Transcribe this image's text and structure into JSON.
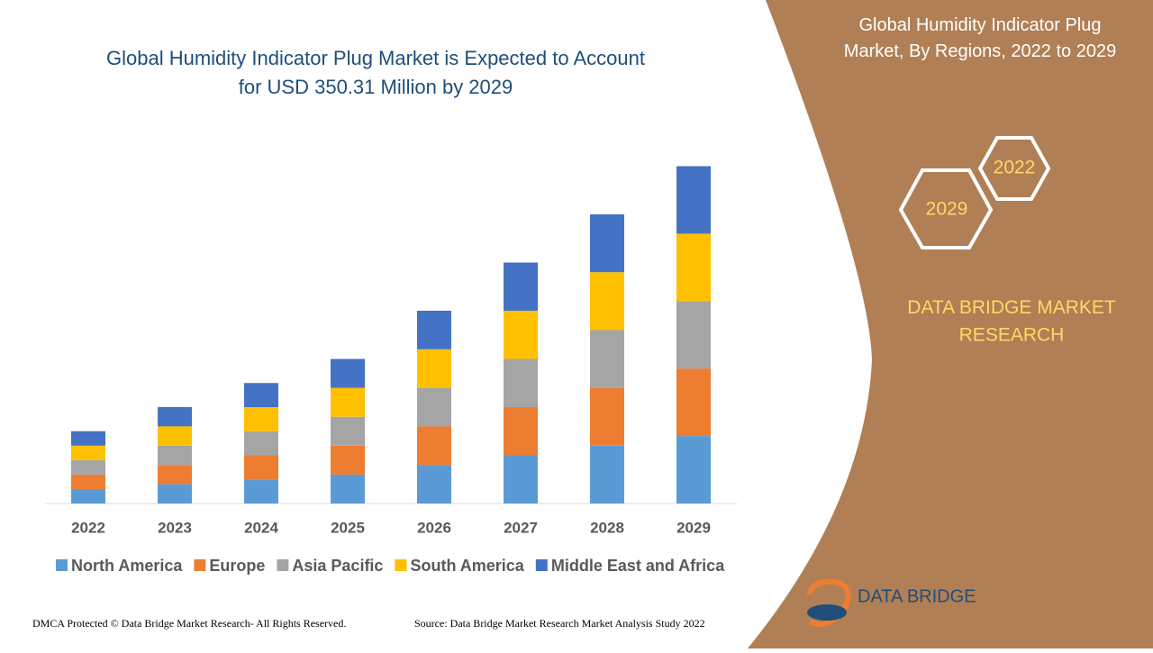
{
  "chart_data": {
    "type": "stacked_bar",
    "title": "Global Humidity Indicator Plug Market is Expected to Account for USD 350.31 Million by 2029",
    "categories": [
      "2022",
      "2023",
      "2024",
      "2025",
      "2026",
      "2027",
      "2028",
      "2029"
    ],
    "series": [
      {
        "name": "North America",
        "color": "#5b9bd5",
        "values": [
          15,
          20,
          25,
          30,
          40,
          50,
          60,
          70
        ]
      },
      {
        "name": "Europe",
        "color": "#ed7d31",
        "values": [
          15,
          20,
          25,
          30,
          40,
          50,
          60,
          70
        ]
      },
      {
        "name": "Asia Pacific",
        "color": "#a5a5a5",
        "values": [
          15,
          20,
          25,
          30,
          40,
          50,
          60,
          70
        ]
      },
      {
        "name": "South America",
        "color": "#ffc000",
        "values": [
          15,
          20,
          25,
          30,
          40,
          50,
          60,
          70
        ]
      },
      {
        "name": "Middle East and Africa",
        "color": "#4472c4",
        "values": [
          15,
          20,
          25,
          30,
          40,
          50,
          60,
          70
        ]
      }
    ],
    "ylim": [
      0,
      400
    ],
    "legend": "bottom"
  },
  "side_panel": {
    "title": "Global Humidity Indicator Plug Market, By Regions, 2022 to 2029",
    "hexagons": [
      "2022",
      "2029"
    ],
    "brand": "DATA BRIDGE MARKET RESEARCH"
  },
  "footer": {
    "logo": "DATA BRIDGE",
    "copyright": "DMCA Protected © Data Bridge Market Research- All Rights Reserved.",
    "source": "Source: Data Bridge Market Research Market Analysis Study 2022"
  }
}
